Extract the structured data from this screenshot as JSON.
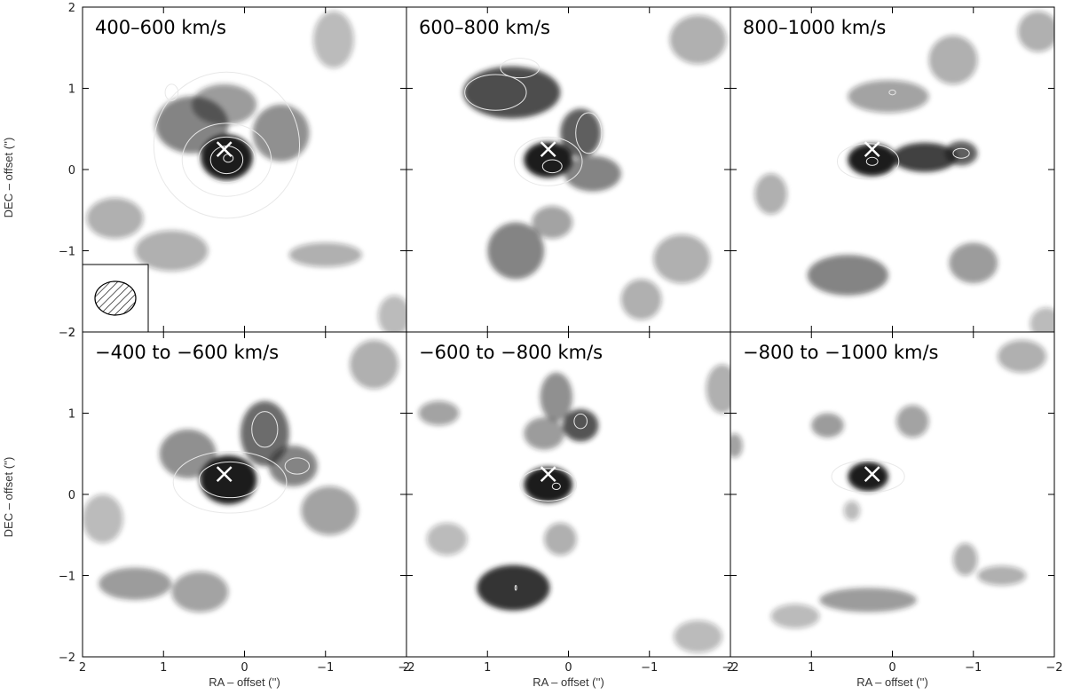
{
  "figure": {
    "ylabel": "DEC – offset ('')",
    "xlabel": "RA – offset ('')"
  },
  "colors": {
    "emission_dark": "#1e1e1e",
    "contour": "#e8e8e8",
    "marker": "#ffffff",
    "frame": "#000000"
  },
  "chart_data": [
    {
      "type": "heatmap",
      "title": "400–600 km/s",
      "xlabel": "RA – offset ('')",
      "ylabel": "DEC – offset ('')",
      "xlim": [
        2,
        -2
      ],
      "ylim": [
        -2,
        2
      ],
      "xticks": [
        2,
        1,
        0,
        -1,
        -2
      ],
      "yticks": [
        2,
        1,
        0,
        -1,
        -2
      ],
      "marker_x": 0.25,
      "marker_y": 0.25,
      "beam_inset": true,
      "blobs": [
        {
          "x": 0.22,
          "y": 0.15,
          "sx": 0.32,
          "sy": 0.28,
          "a": 1.0
        },
        {
          "x": 0.65,
          "y": 0.55,
          "sx": 0.45,
          "sy": 0.35,
          "a": 0.55
        },
        {
          "x": -0.45,
          "y": 0.45,
          "sx": 0.35,
          "sy": 0.35,
          "a": 0.5
        },
        {
          "x": 0.25,
          "y": 0.8,
          "sx": 0.4,
          "sy": 0.25,
          "a": 0.45
        },
        {
          "x": 1.6,
          "y": -0.6,
          "sx": 0.35,
          "sy": 0.25,
          "a": 0.35
        },
        {
          "x": 0.9,
          "y": -1.0,
          "sx": 0.45,
          "sy": 0.25,
          "a": 0.35
        },
        {
          "x": -1.0,
          "y": -1.05,
          "sx": 0.45,
          "sy": 0.15,
          "a": 0.35
        },
        {
          "x": -1.1,
          "y": 1.6,
          "sx": 0.25,
          "sy": 0.35,
          "a": 0.3
        },
        {
          "x": -1.85,
          "y": -1.8,
          "sx": 0.2,
          "sy": 0.25,
          "a": 0.3
        }
      ],
      "contours": [
        {
          "x": 0.22,
          "y": 0.3,
          "rx": 0.9,
          "ry": 0.9
        },
        {
          "x": 0.22,
          "y": 0.12,
          "rx": 0.55,
          "ry": 0.45
        },
        {
          "x": 0.22,
          "y": 0.12,
          "rx": 0.35,
          "ry": 0.28
        },
        {
          "x": 0.22,
          "y": 0.12,
          "rx": 0.2,
          "ry": 0.17
        },
        {
          "x": 0.2,
          "y": 0.14,
          "rx": 0.06,
          "ry": 0.05
        },
        {
          "x": 0.9,
          "y": 0.95,
          "rx": 0.08,
          "ry": 0.1
        }
      ]
    },
    {
      "type": "heatmap",
      "title": "600–800 km/s",
      "xlabel": "RA – offset ('')",
      "ylabel": "",
      "xlim": [
        2,
        -2
      ],
      "ylim": [
        -2,
        2
      ],
      "xticks": [
        2,
        1,
        0,
        -1,
        -2
      ],
      "yticks": [
        2,
        1,
        0,
        -1,
        -2
      ],
      "marker_x": 0.25,
      "marker_y": 0.25,
      "beam_inset": false,
      "blobs": [
        {
          "x": 0.25,
          "y": 0.12,
          "sx": 0.3,
          "sy": 0.22,
          "a": 1.0
        },
        {
          "x": 0.7,
          "y": 0.95,
          "sx": 0.6,
          "sy": 0.32,
          "a": 0.8
        },
        {
          "x": -0.15,
          "y": 0.45,
          "sx": 0.25,
          "sy": 0.3,
          "a": 0.7
        },
        {
          "x": -0.3,
          "y": -0.05,
          "sx": 0.35,
          "sy": 0.22,
          "a": 0.55
        },
        {
          "x": 0.65,
          "y": -1.0,
          "sx": 0.35,
          "sy": 0.35,
          "a": 0.55
        },
        {
          "x": -1.4,
          "y": -1.1,
          "sx": 0.35,
          "sy": 0.3,
          "a": 0.35
        },
        {
          "x": -0.9,
          "y": -1.6,
          "sx": 0.25,
          "sy": 0.25,
          "a": 0.35
        },
        {
          "x": -1.6,
          "y": 1.6,
          "sx": 0.35,
          "sy": 0.3,
          "a": 0.35
        },
        {
          "x": 0.2,
          "y": -0.65,
          "sx": 0.25,
          "sy": 0.2,
          "a": 0.4
        }
      ],
      "contours": [
        {
          "x": 0.25,
          "y": 0.1,
          "rx": 0.42,
          "ry": 0.3
        },
        {
          "x": 0.2,
          "y": 0.04,
          "rx": 0.12,
          "ry": 0.08
        },
        {
          "x": 0.9,
          "y": 0.95,
          "rx": 0.38,
          "ry": 0.22
        },
        {
          "x": 0.6,
          "y": 1.25,
          "rx": 0.24,
          "ry": 0.12
        },
        {
          "x": -0.25,
          "y": 0.45,
          "rx": 0.16,
          "ry": 0.25
        }
      ]
    },
    {
      "type": "heatmap",
      "title": "800–1000 km/s",
      "xlabel": "RA – offset ('')",
      "ylabel": "",
      "xlim": [
        2,
        -2
      ],
      "ylim": [
        -2,
        2
      ],
      "xticks": [
        2,
        1,
        0,
        -1,
        -2
      ],
      "yticks": [
        2,
        1,
        0,
        -1,
        -2
      ],
      "marker_x": 0.25,
      "marker_y": 0.25,
      "beam_inset": false,
      "blobs": [
        {
          "x": 0.25,
          "y": 0.12,
          "sx": 0.3,
          "sy": 0.2,
          "a": 1.0
        },
        {
          "x": -0.4,
          "y": 0.15,
          "sx": 0.4,
          "sy": 0.18,
          "a": 0.85
        },
        {
          "x": -0.85,
          "y": 0.2,
          "sx": 0.2,
          "sy": 0.15,
          "a": 0.7
        },
        {
          "x": 0.55,
          "y": -1.3,
          "sx": 0.5,
          "sy": 0.25,
          "a": 0.55
        },
        {
          "x": -1.0,
          "y": -1.15,
          "sx": 0.3,
          "sy": 0.25,
          "a": 0.45
        },
        {
          "x": 0.05,
          "y": 0.9,
          "sx": 0.5,
          "sy": 0.2,
          "a": 0.4
        },
        {
          "x": -0.75,
          "y": 1.35,
          "sx": 0.3,
          "sy": 0.3,
          "a": 0.35
        },
        {
          "x": -1.8,
          "y": 1.7,
          "sx": 0.25,
          "sy": 0.25,
          "a": 0.35
        },
        {
          "x": 1.5,
          "y": -0.3,
          "sx": 0.2,
          "sy": 0.25,
          "a": 0.35
        },
        {
          "x": -1.9,
          "y": -1.9,
          "sx": 0.2,
          "sy": 0.2,
          "a": 0.3
        }
      ],
      "contours": [
        {
          "x": 0.3,
          "y": 0.1,
          "rx": 0.38,
          "ry": 0.22
        },
        {
          "x": 0.25,
          "y": 0.1,
          "rx": 0.07,
          "ry": 0.05
        },
        {
          "x": -0.85,
          "y": 0.2,
          "rx": 0.1,
          "ry": 0.06
        },
        {
          "x": 0.0,
          "y": 0.95,
          "rx": 0.04,
          "ry": 0.03
        }
      ]
    },
    {
      "type": "heatmap",
      "title": "−400 to −600 km/s",
      "xlabel": "RA – offset ('')",
      "ylabel": "DEC – offset ('')",
      "xlim": [
        2,
        -2
      ],
      "ylim": [
        -2,
        2
      ],
      "xticks": [
        2,
        1,
        0,
        -1,
        -2
      ],
      "yticks": [
        2,
        1,
        0,
        -1,
        -2
      ],
      "marker_x": 0.25,
      "marker_y": 0.25,
      "beam_inset": false,
      "blobs": [
        {
          "x": 0.2,
          "y": 0.18,
          "sx": 0.35,
          "sy": 0.3,
          "a": 1.0
        },
        {
          "x": -0.25,
          "y": 0.75,
          "sx": 0.3,
          "sy": 0.4,
          "a": 0.65
        },
        {
          "x": -0.6,
          "y": 0.35,
          "sx": 0.3,
          "sy": 0.25,
          "a": 0.55
        },
        {
          "x": 0.7,
          "y": 0.5,
          "sx": 0.35,
          "sy": 0.3,
          "a": 0.5
        },
        {
          "x": 1.35,
          "y": -1.1,
          "sx": 0.45,
          "sy": 0.2,
          "a": 0.45
        },
        {
          "x": 0.55,
          "y": -1.2,
          "sx": 0.35,
          "sy": 0.25,
          "a": 0.4
        },
        {
          "x": -1.05,
          "y": -0.2,
          "sx": 0.35,
          "sy": 0.3,
          "a": 0.4
        },
        {
          "x": -1.6,
          "y": 1.6,
          "sx": 0.3,
          "sy": 0.3,
          "a": 0.35
        },
        {
          "x": 1.75,
          "y": -0.3,
          "sx": 0.25,
          "sy": 0.3,
          "a": 0.3
        }
      ],
      "contours": [
        {
          "x": 0.18,
          "y": 0.15,
          "rx": 0.7,
          "ry": 0.38
        },
        {
          "x": 0.18,
          "y": 0.18,
          "rx": 0.38,
          "ry": 0.22
        },
        {
          "x": -0.25,
          "y": 0.8,
          "rx": 0.16,
          "ry": 0.22
        },
        {
          "x": -0.65,
          "y": 0.35,
          "rx": 0.15,
          "ry": 0.1
        }
      ]
    },
    {
      "type": "heatmap",
      "title": "−600 to −800 km/s",
      "xlabel": "RA – offset ('')",
      "ylabel": "",
      "xlim": [
        2,
        -2
      ],
      "ylim": [
        -2,
        2
      ],
      "xticks": [
        2,
        1,
        0,
        -1,
        -2
      ],
      "yticks": [
        2,
        1,
        0,
        -1,
        -2
      ],
      "marker_x": 0.25,
      "marker_y": 0.25,
      "beam_inset": false,
      "blobs": [
        {
          "x": 0.25,
          "y": 0.12,
          "sx": 0.3,
          "sy": 0.22,
          "a": 1.0
        },
        {
          "x": 0.68,
          "y": -1.15,
          "sx": 0.45,
          "sy": 0.28,
          "a": 0.9
        },
        {
          "x": -0.15,
          "y": 0.85,
          "sx": 0.22,
          "sy": 0.2,
          "a": 0.75
        },
        {
          "x": 0.15,
          "y": 1.2,
          "sx": 0.2,
          "sy": 0.3,
          "a": 0.5
        },
        {
          "x": 0.3,
          "y": 0.75,
          "sx": 0.25,
          "sy": 0.2,
          "a": 0.45
        },
        {
          "x": 1.6,
          "y": 1.0,
          "sx": 0.25,
          "sy": 0.15,
          "a": 0.4
        },
        {
          "x": -1.9,
          "y": 1.3,
          "sx": 0.2,
          "sy": 0.3,
          "a": 0.35
        },
        {
          "x": 0.1,
          "y": -0.55,
          "sx": 0.2,
          "sy": 0.2,
          "a": 0.35
        },
        {
          "x": 1.5,
          "y": -0.55,
          "sx": 0.25,
          "sy": 0.2,
          "a": 0.3
        },
        {
          "x": -1.6,
          "y": -1.75,
          "sx": 0.3,
          "sy": 0.2,
          "a": 0.3
        }
      ],
      "contours": [
        {
          "x": 0.25,
          "y": 0.12,
          "rx": 0.35,
          "ry": 0.2
        },
        {
          "x": 0.15,
          "y": 0.1,
          "rx": 0.05,
          "ry": 0.04
        },
        {
          "x": -0.15,
          "y": 0.9,
          "rx": 0.08,
          "ry": 0.09
        },
        {
          "x": 0.65,
          "y": -1.15,
          "rx": 0.01,
          "ry": 0.03
        }
      ]
    },
    {
      "type": "heatmap",
      "title": "−800 to −1000 km/s",
      "xlabel": "RA – offset ('')",
      "ylabel": "",
      "xlim": [
        2,
        -2
      ],
      "ylim": [
        -2,
        2
      ],
      "xticks": [
        2,
        1,
        0,
        -1,
        -2
      ],
      "yticks": [
        2,
        1,
        0,
        -1,
        -2
      ],
      "marker_x": 0.25,
      "marker_y": 0.25,
      "beam_inset": false,
      "blobs": [
        {
          "x": 0.3,
          "y": 0.22,
          "sx": 0.25,
          "sy": 0.18,
          "a": 1.0
        },
        {
          "x": 0.8,
          "y": 0.85,
          "sx": 0.2,
          "sy": 0.15,
          "a": 0.45
        },
        {
          "x": -0.25,
          "y": 0.9,
          "sx": 0.2,
          "sy": 0.2,
          "a": 0.4
        },
        {
          "x": 0.3,
          "y": -1.3,
          "sx": 0.6,
          "sy": 0.15,
          "a": 0.45
        },
        {
          "x": -0.9,
          "y": -0.8,
          "sx": 0.15,
          "sy": 0.2,
          "a": 0.35
        },
        {
          "x": -1.35,
          "y": -1.0,
          "sx": 0.3,
          "sy": 0.12,
          "a": 0.35
        },
        {
          "x": -1.6,
          "y": 1.7,
          "sx": 0.3,
          "sy": 0.2,
          "a": 0.35
        },
        {
          "x": 1.95,
          "y": 0.6,
          "sx": 0.1,
          "sy": 0.15,
          "a": 0.4
        },
        {
          "x": 1.2,
          "y": -1.5,
          "sx": 0.3,
          "sy": 0.15,
          "a": 0.3
        },
        {
          "x": 0.5,
          "y": -0.2,
          "sx": 0.1,
          "sy": 0.12,
          "a": 0.3
        }
      ],
      "contours": [
        {
          "x": 0.3,
          "y": 0.22,
          "rx": 0.45,
          "ry": 0.2
        }
      ]
    }
  ]
}
